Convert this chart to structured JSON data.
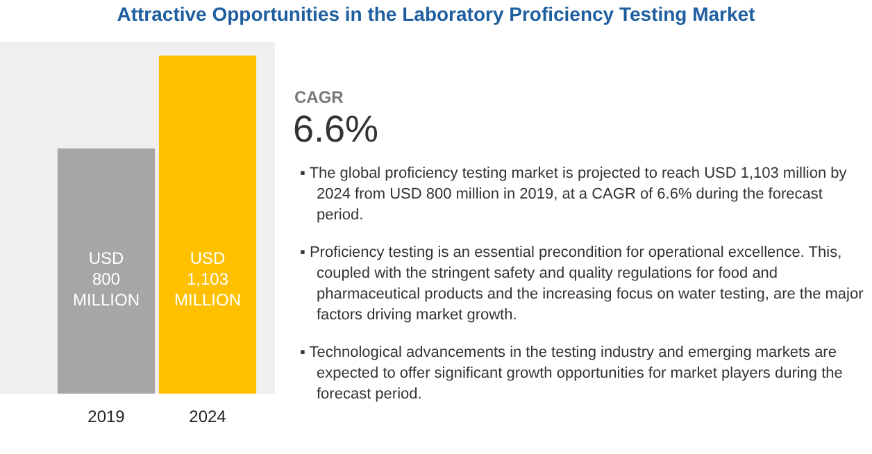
{
  "chart_data": {
    "type": "bar",
    "title": "Attractive Opportunities in the Laboratory Proficiency Testing Market",
    "categories": [
      "2019",
      "2024"
    ],
    "values": [
      800,
      1103
    ],
    "colors": [
      "#a6a6a6",
      "#ffc000"
    ],
    "value_labels": [
      "USD 800 MILLION",
      "USD 1,103 MILLION"
    ],
    "grid": false,
    "legend": false,
    "annotations": [
      "CAGR",
      "6.6%",
      "▪ The global proficiency testing market is projected to reach USD 1,103 million by 2024 from USD 800 million in 2019, at a CAGR of 6.6% during the forecast period.",
      "▪ Proficiency testing is an essential precondition for operational excellence. This, coupled with the stringent safety and quality regulations for food and pharmaceutical products and the increasing focus on water testing, are the major factors driving market growth.",
      "▪ Technological advancements in the testing industry and emerging markets are expected to offer significant growth opportunities for market players during the forecast period."
    ]
  }
}
